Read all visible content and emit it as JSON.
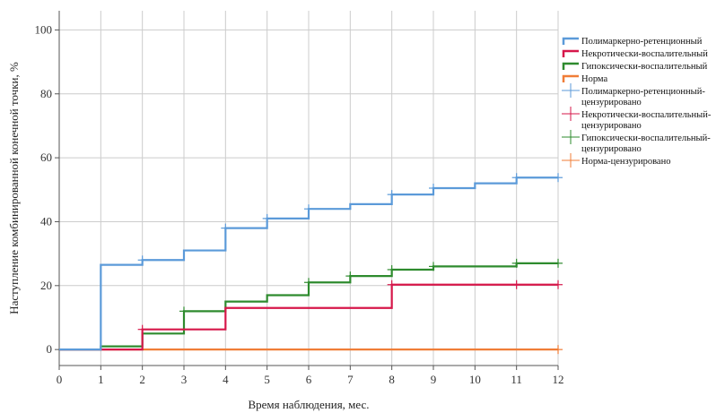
{
  "chart_data": {
    "type": "line",
    "step": true,
    "xlabel": "Время наблюдения, мес.",
    "ylabel": "Наступление комбинированной конечной точки, %",
    "xlim": [
      0,
      12
    ],
    "ylim": [
      -5,
      106
    ],
    "xticks": [
      0,
      1,
      2,
      3,
      4,
      5,
      6,
      7,
      8,
      9,
      10,
      11,
      12
    ],
    "yticks": [
      0,
      20,
      40,
      60,
      80,
      100
    ],
    "grid": true,
    "legend_position": "right",
    "series": [
      {
        "name": "Полимаркерно-ретенционный",
        "censored_name": "Полимаркерно-ретенционный-цензурировано",
        "color": "#5b9ad9",
        "x": [
          0,
          1,
          2,
          3,
          4,
          5,
          6,
          7,
          8,
          9,
          10,
          11,
          12
        ],
        "y": [
          0,
          26.5,
          28,
          31,
          38,
          41,
          44,
          45.5,
          48.5,
          50.5,
          52,
          53.8,
          53.8
        ],
        "censored_x": [
          2,
          4,
          5,
          6,
          8,
          9,
          11,
          12
        ],
        "censored_y": [
          28,
          38,
          41,
          44,
          48.5,
          50.5,
          53.8,
          53.8
        ]
      },
      {
        "name": "Некротически-воспалительный",
        "censored_name": "Некротически-воспалительный-цензурировано",
        "color": "#d6174a",
        "x": [
          0,
          2,
          4,
          8,
          12
        ],
        "y": [
          0,
          6.3,
          13,
          20.3,
          20.3
        ],
        "censored_x": [
          2,
          8,
          11,
          12
        ],
        "censored_y": [
          6.3,
          20.3,
          20.3,
          20.3
        ]
      },
      {
        "name": "Гипоксически-воспалительный",
        "censored_name": "Гипоксически-воспалительный-цензурировано",
        "color": "#2e8b2e",
        "x": [
          0,
          1,
          2,
          3,
          4,
          5,
          6,
          7,
          8,
          9,
          10,
          11,
          12
        ],
        "y": [
          0,
          1,
          5,
          12,
          15,
          17,
          21,
          23,
          25,
          26,
          26,
          27,
          27
        ],
        "censored_x": [
          3,
          6,
          7,
          8,
          9,
          11,
          12
        ],
        "censored_y": [
          12,
          21,
          23,
          25,
          26,
          27,
          27
        ]
      },
      {
        "name": "Норма",
        "censored_name": "Норма-цензурировано",
        "color": "#f07d37",
        "x": [
          0,
          12
        ],
        "y": [
          0,
          0
        ],
        "censored_x": [
          12
        ],
        "censored_y": [
          0
        ]
      }
    ]
  }
}
